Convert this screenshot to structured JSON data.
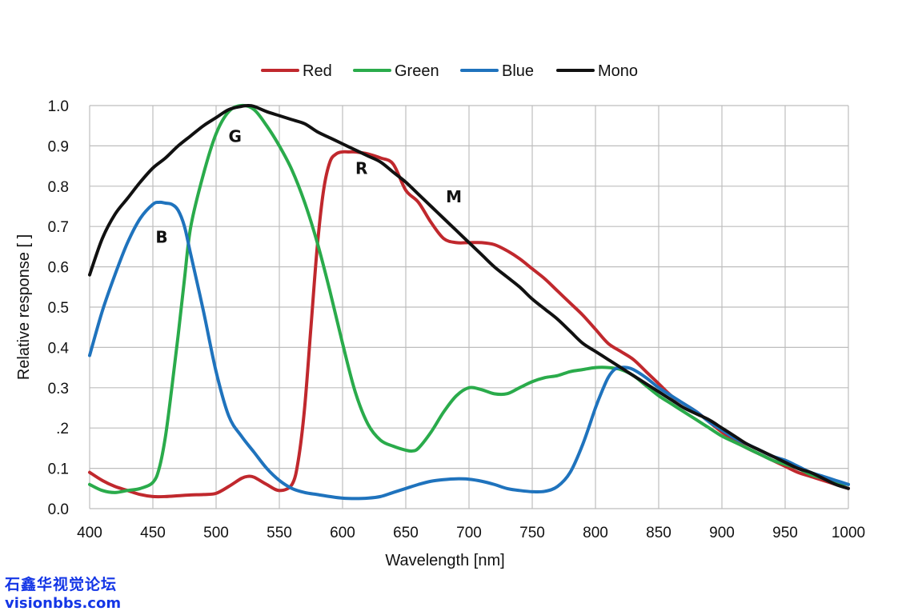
{
  "chart_data": {
    "type": "line",
    "title": "",
    "xlabel": "Wavelength [nm]",
    "ylabel": "Relative response [ ]",
    "xlim": [
      400,
      1000
    ],
    "ylim": [
      0,
      1.0
    ],
    "xticks": [
      400,
      450,
      500,
      550,
      600,
      650,
      700,
      750,
      800,
      850,
      900,
      950,
      1000
    ],
    "yticks": [
      0.0,
      0.1,
      0.2,
      0.3,
      0.4,
      0.5,
      0.6,
      0.7,
      0.8,
      0.9,
      1.0
    ],
    "ytick_labels": [
      "0.0",
      "0.1",
      ".2",
      "0.3",
      "0.4",
      "0.5",
      "0.6",
      "0.7",
      "0.8",
      "0.9",
      "1.0"
    ],
    "grid": true,
    "legend_position": "top-center",
    "series": [
      {
        "name": "Red",
        "color": "#c0282d",
        "label": "R",
        "label_at": [
          615,
          0.83
        ],
        "x": [
          400,
          410,
          420,
          430,
          440,
          450,
          460,
          470,
          480,
          490,
          500,
          510,
          520,
          525,
          530,
          540,
          550,
          560,
          565,
          570,
          575,
          580,
          585,
          590,
          595,
          600,
          605,
          610,
          615,
          620,
          630,
          640,
          650,
          660,
          670,
          680,
          690,
          700,
          710,
          720,
          730,
          740,
          750,
          760,
          770,
          780,
          790,
          800,
          810,
          820,
          830,
          840,
          850,
          860,
          870,
          880,
          890,
          900,
          910,
          920,
          930,
          940,
          950,
          960,
          970,
          980,
          990,
          1000
        ],
        "values": [
          0.09,
          0.07,
          0.055,
          0.045,
          0.035,
          0.03,
          0.03,
          0.032,
          0.034,
          0.035,
          0.038,
          0.055,
          0.075,
          0.08,
          0.078,
          0.06,
          0.045,
          0.06,
          0.12,
          0.25,
          0.45,
          0.65,
          0.79,
          0.86,
          0.88,
          0.885,
          0.885,
          0.885,
          0.883,
          0.88,
          0.87,
          0.855,
          0.79,
          0.76,
          0.71,
          0.67,
          0.66,
          0.66,
          0.66,
          0.655,
          0.64,
          0.62,
          0.595,
          0.57,
          0.54,
          0.51,
          0.48,
          0.445,
          0.41,
          0.39,
          0.37,
          0.34,
          0.31,
          0.28,
          0.26,
          0.24,
          0.215,
          0.19,
          0.17,
          0.15,
          0.135,
          0.12,
          0.105,
          0.09,
          0.08,
          0.07,
          0.06,
          0.05
        ]
      },
      {
        "name": "Green",
        "color": "#2aab4b",
        "label": "G",
        "label_at": [
          515,
          0.91
        ],
        "x": [
          400,
          410,
          420,
          430,
          440,
          450,
          455,
          460,
          465,
          470,
          475,
          480,
          490,
          500,
          510,
          520,
          530,
          540,
          550,
          560,
          570,
          580,
          590,
          600,
          610,
          620,
          630,
          640,
          650,
          655,
          660,
          670,
          680,
          690,
          700,
          710,
          720,
          730,
          740,
          750,
          760,
          770,
          780,
          790,
          800,
          810,
          820,
          830,
          840,
          850,
          860,
          870,
          880,
          890,
          900,
          910,
          920,
          930,
          940,
          950,
          960,
          970,
          980,
          990,
          1000
        ],
        "values": [
          0.06,
          0.045,
          0.04,
          0.045,
          0.05,
          0.065,
          0.1,
          0.18,
          0.3,
          0.43,
          0.57,
          0.7,
          0.83,
          0.93,
          0.985,
          1.0,
          0.99,
          0.95,
          0.9,
          0.84,
          0.76,
          0.66,
          0.54,
          0.41,
          0.29,
          0.21,
          0.17,
          0.155,
          0.145,
          0.143,
          0.15,
          0.19,
          0.24,
          0.28,
          0.3,
          0.295,
          0.285,
          0.285,
          0.3,
          0.315,
          0.325,
          0.33,
          0.34,
          0.345,
          0.35,
          0.35,
          0.345,
          0.33,
          0.305,
          0.28,
          0.26,
          0.24,
          0.22,
          0.2,
          0.18,
          0.165,
          0.15,
          0.135,
          0.12,
          0.11,
          0.1,
          0.085,
          0.075,
          0.065,
          0.06
        ]
      },
      {
        "name": "Blue",
        "color": "#1f73bd",
        "label": "B",
        "label_at": [
          457,
          0.66
        ],
        "x": [
          400,
          410,
          420,
          430,
          440,
          450,
          455,
          460,
          465,
          470,
          475,
          480,
          490,
          500,
          510,
          520,
          530,
          540,
          550,
          560,
          570,
          580,
          590,
          600,
          610,
          620,
          630,
          640,
          650,
          660,
          670,
          680,
          690,
          700,
          710,
          720,
          730,
          740,
          750,
          760,
          770,
          780,
          790,
          800,
          805,
          810,
          815,
          820,
          825,
          830,
          840,
          850,
          860,
          870,
          880,
          890,
          900,
          910,
          920,
          930,
          940,
          950,
          960,
          970,
          980,
          990,
          1000
        ],
        "values": [
          0.38,
          0.49,
          0.58,
          0.66,
          0.72,
          0.755,
          0.76,
          0.758,
          0.755,
          0.74,
          0.7,
          0.63,
          0.49,
          0.34,
          0.23,
          0.18,
          0.14,
          0.1,
          0.07,
          0.05,
          0.04,
          0.035,
          0.03,
          0.026,
          0.025,
          0.026,
          0.03,
          0.04,
          0.05,
          0.06,
          0.068,
          0.072,
          0.074,
          0.073,
          0.068,
          0.06,
          0.05,
          0.045,
          0.042,
          0.043,
          0.055,
          0.09,
          0.16,
          0.25,
          0.29,
          0.325,
          0.345,
          0.35,
          0.35,
          0.345,
          0.325,
          0.3,
          0.28,
          0.26,
          0.24,
          0.215,
          0.195,
          0.175,
          0.16,
          0.145,
          0.13,
          0.12,
          0.105,
          0.09,
          0.08,
          0.07,
          0.06
        ]
      },
      {
        "name": "Mono",
        "color": "#111111",
        "label": "M",
        "label_at": [
          688,
          0.76
        ],
        "x": [
          400,
          410,
          420,
          430,
          440,
          450,
          460,
          470,
          480,
          490,
          500,
          510,
          520,
          525,
          530,
          540,
          550,
          560,
          570,
          580,
          590,
          600,
          610,
          620,
          630,
          640,
          650,
          660,
          670,
          680,
          690,
          700,
          710,
          720,
          730,
          740,
          750,
          760,
          770,
          780,
          790,
          800,
          810,
          820,
          830,
          840,
          850,
          860,
          870,
          880,
          890,
          900,
          910,
          920,
          930,
          940,
          950,
          960,
          970,
          980,
          990,
          1000
        ],
        "values": [
          0.58,
          0.67,
          0.73,
          0.77,
          0.81,
          0.845,
          0.87,
          0.9,
          0.925,
          0.95,
          0.97,
          0.99,
          0.998,
          1.0,
          0.998,
          0.985,
          0.975,
          0.965,
          0.955,
          0.935,
          0.92,
          0.905,
          0.89,
          0.875,
          0.86,
          0.835,
          0.81,
          0.78,
          0.75,
          0.72,
          0.69,
          0.66,
          0.63,
          0.6,
          0.575,
          0.55,
          0.52,
          0.495,
          0.47,
          0.44,
          0.41,
          0.39,
          0.37,
          0.35,
          0.33,
          0.31,
          0.29,
          0.27,
          0.25,
          0.235,
          0.22,
          0.2,
          0.18,
          0.16,
          0.145,
          0.13,
          0.115,
          0.1,
          0.09,
          0.075,
          0.06,
          0.05
        ]
      }
    ]
  },
  "watermark": {
    "line1": "石鑫华视觉论坛",
    "line2": "visionbbs.com"
  }
}
